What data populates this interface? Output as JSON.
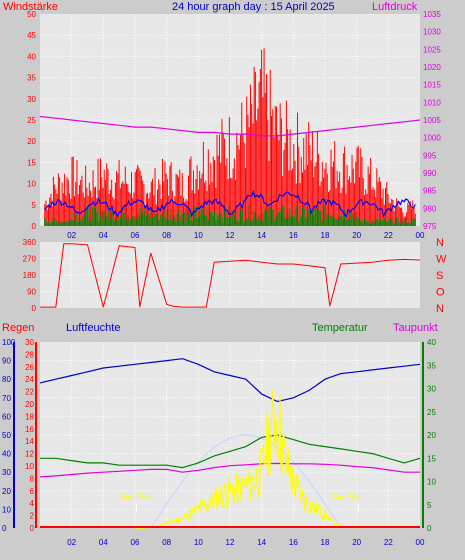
{
  "panel1": {
    "left_label": "Windstärke",
    "title": "24 hour graph day : 15 April 2025",
    "right_label": "Luftdruck",
    "left_ticks": [
      "50",
      "45",
      "40",
      "35",
      "30",
      "25",
      "20",
      "15",
      "10",
      "5",
      "0"
    ],
    "right_ticks": [
      "1035",
      "1030",
      "1025",
      "1020",
      "1015",
      "1010",
      "1005",
      "1000",
      "995",
      "990",
      "985",
      "980",
      "975"
    ]
  },
  "panel2": {
    "left_ticks": [
      "360",
      "270",
      "180",
      "90",
      "0"
    ],
    "compass": [
      "N",
      "W",
      "S",
      "O",
      "N"
    ]
  },
  "panel3": {
    "regen_label": "Regen",
    "feuchte_label": "Luftfeuchte",
    "temp_label": "Temperatur",
    "taupunkt_label": "Taupunkt",
    "humidity_ticks": [
      "100",
      "90",
      "80",
      "70",
      "60",
      "50",
      "40",
      "30",
      "20",
      "10",
      "0"
    ],
    "rain_ticks": [
      "30",
      "28",
      "26",
      "24",
      "22",
      "20",
      "18",
      "16",
      "14",
      "12",
      "10",
      "8",
      "6",
      "4",
      "2",
      "0"
    ],
    "temp_ticks": [
      "40",
      "35",
      "30",
      "25",
      "20",
      "15",
      "10",
      "5",
      "0"
    ],
    "sunrise_label": "Sun Rise",
    "sunset_label": "Sun Set"
  },
  "time_labels": [
    "02",
    "04",
    "06",
    "08",
    "10",
    "12",
    "14",
    "16",
    "18",
    "20",
    "22",
    "00"
  ],
  "colors": {
    "wind": "#ff0000",
    "gust": "#008000",
    "avgwind": "#0000ff",
    "pressure": "#e000e0",
    "direction": "#ff0000",
    "humidity": "#0000cc",
    "temperature": "#008000",
    "dewpoint": "#e000e0",
    "solar": "#ffff00",
    "rain": "#ff0000",
    "uv": "#c8d8ff"
  },
  "chart_data": [
    {
      "type": "line",
      "title": "24 hour graph day : 15 April 2025",
      "series": [
        {
          "name": "Windstärke",
          "axis": "left",
          "x": [
            0,
            1,
            2,
            3,
            4,
            5,
            6,
            7,
            8,
            9,
            10,
            11,
            12,
            13,
            14,
            15,
            16,
            17,
            18,
            19,
            20,
            21,
            22,
            23,
            24
          ],
          "values": [
            5,
            14,
            17,
            14,
            18,
            16,
            15,
            13,
            17,
            14,
            22,
            25,
            28,
            32,
            44,
            32,
            28,
            26,
            22,
            21,
            20,
            16,
            10,
            5,
            8
          ]
        },
        {
          "name": "Luftdruck",
          "axis": "right",
          "x": [
            0,
            1,
            2,
            3,
            4,
            5,
            6,
            7,
            8,
            9,
            10,
            11,
            12,
            13,
            14,
            15,
            16,
            17,
            18,
            19,
            20,
            21,
            22,
            23,
            24
          ],
          "values": [
            1006,
            1005.5,
            1005,
            1004.5,
            1004,
            1003.5,
            1003,
            1003,
            1002.5,
            1002,
            1001.5,
            1001.5,
            1001,
            1001,
            1000.5,
            1000.5,
            1001,
            1001.5,
            1002,
            1002.5,
            1003,
            1003.5,
            1004,
            1004.5,
            1005
          ]
        }
      ],
      "xlim": [
        0,
        24
      ],
      "ylim": [
        0,
        50
      ],
      "ylim_right": [
        975,
        1035
      ]
    },
    {
      "type": "line",
      "series": [
        {
          "name": "direction",
          "x": [
            0,
            1,
            1.5,
            2,
            3,
            4,
            5,
            6,
            6.3,
            7,
            8,
            8.4,
            9,
            10,
            10.5,
            11,
            12,
            13,
            14,
            15,
            16,
            17,
            18,
            18.3,
            19,
            20,
            21,
            22,
            23,
            24
          ],
          "values": [
            5,
            5,
            350,
            350,
            345,
            5,
            340,
            330,
            5,
            300,
            20,
            10,
            5,
            5,
            5,
            250,
            255,
            260,
            250,
            240,
            240,
            230,
            220,
            10,
            240,
            245,
            250,
            260,
            265,
            262
          ]
        }
      ],
      "xlim": [
        0,
        24
      ],
      "ylim": [
        0,
        360
      ]
    },
    {
      "type": "line",
      "series": [
        {
          "name": "Luftfeuchte",
          "axis": "humidity",
          "x": [
            0,
            1,
            2,
            3,
            4,
            5,
            6,
            7,
            8,
            9,
            10,
            11,
            12,
            13,
            14,
            15,
            16,
            17,
            18,
            19,
            20,
            21,
            22,
            23,
            24
          ],
          "values": [
            78,
            80,
            82,
            84,
            86,
            87,
            88,
            89,
            90,
            91,
            88,
            84,
            82,
            80,
            72,
            68,
            70,
            74,
            80,
            83,
            84,
            85,
            86,
            87,
            88
          ]
        },
        {
          "name": "Temperatur",
          "axis": "temp",
          "x": [
            0,
            1,
            2,
            3,
            4,
            5,
            6,
            7,
            8,
            9,
            10,
            11,
            12,
            13,
            14,
            15,
            16,
            17,
            18,
            19,
            20,
            21,
            22,
            23,
            24
          ],
          "values": [
            15,
            15,
            14.5,
            14,
            14,
            13.5,
            13.5,
            13.5,
            13.5,
            13,
            14,
            15.5,
            16.5,
            17.5,
            19.5,
            20,
            19,
            18,
            17.5,
            17,
            16.5,
            16,
            15,
            14,
            15
          ]
        },
        {
          "name": "Taupunkt",
          "axis": "temp",
          "x": [
            0,
            1,
            2,
            3,
            4,
            5,
            6,
            7,
            8,
            9,
            10,
            11,
            12,
            13,
            14,
            15,
            16,
            17,
            18,
            19,
            20,
            21,
            22,
            23,
            24
          ],
          "values": [
            11,
            11.2,
            11.5,
            11.8,
            12,
            12.2,
            12.4,
            12.6,
            12.6,
            12,
            12.4,
            13,
            13.4,
            13.6,
            13.8,
            13.9,
            13.8,
            13.8,
            13.7,
            13.5,
            13.2,
            13,
            12.5,
            12,
            12
          ]
        },
        {
          "name": "solar",
          "axis": "temp",
          "x": [
            0,
            6.5,
            7,
            7.5,
            8,
            8.5,
            9,
            9.5,
            10,
            10.5,
            11,
            11.5,
            12,
            12.5,
            13,
            13.5,
            14,
            14.5,
            15,
            15.5,
            16,
            16.5,
            17,
            17.5,
            18,
            18.5,
            19,
            20,
            24
          ],
          "values": [
            0,
            0,
            0.2,
            0.5,
            1,
            1.5,
            2,
            3,
            4,
            5,
            6,
            7,
            8,
            8,
            9,
            10,
            12,
            20,
            24,
            14,
            10,
            7,
            5,
            4,
            3,
            1,
            0.5,
            0,
            0
          ]
        },
        {
          "name": "Regen",
          "axis": "rain",
          "x": [
            0,
            24
          ],
          "values": [
            0,
            0
          ]
        }
      ],
      "xlim": [
        0,
        24
      ],
      "ylim": [
        0,
        100
      ],
      "ylim_temp": [
        0,
        40
      ],
      "ylim_rain": [
        0,
        30
      ]
    }
  ]
}
